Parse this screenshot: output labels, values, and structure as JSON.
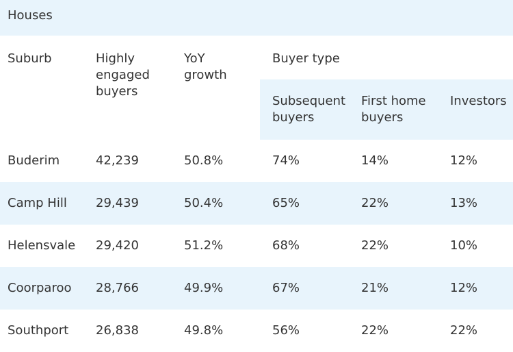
{
  "title": "Houses",
  "headers": {
    "suburb": "Suburb",
    "engaged": "Highly engaged buyers",
    "yoy": "YoY growth",
    "buyer_type": "Buyer type",
    "subsequent": "Subsequent buyers",
    "first_home": "First home buyers",
    "investors": "Investors"
  },
  "rows": [
    {
      "suburb": "Buderim",
      "engaged": "42,239",
      "yoy": "50.8%",
      "subsequent": "74%",
      "first_home": "14%",
      "investors": "12%"
    },
    {
      "suburb": "Camp Hill",
      "engaged": "29,439",
      "yoy": "50.4%",
      "subsequent": "65%",
      "first_home": "22%",
      "investors": "13%"
    },
    {
      "suburb": "Helensvale",
      "engaged": "29,420",
      "yoy": "51.2%",
      "subsequent": "68%",
      "first_home": "22%",
      "investors": "10%"
    },
    {
      "suburb": "Coorparoo",
      "engaged": "28,766",
      "yoy": "49.9%",
      "subsequent": "67%",
      "first_home": "21%",
      "investors": "12%"
    },
    {
      "suburb": "Southport",
      "engaged": "26,838",
      "yoy": "49.8%",
      "subsequent": "56%",
      "first_home": "22%",
      "investors": "22%"
    }
  ]
}
